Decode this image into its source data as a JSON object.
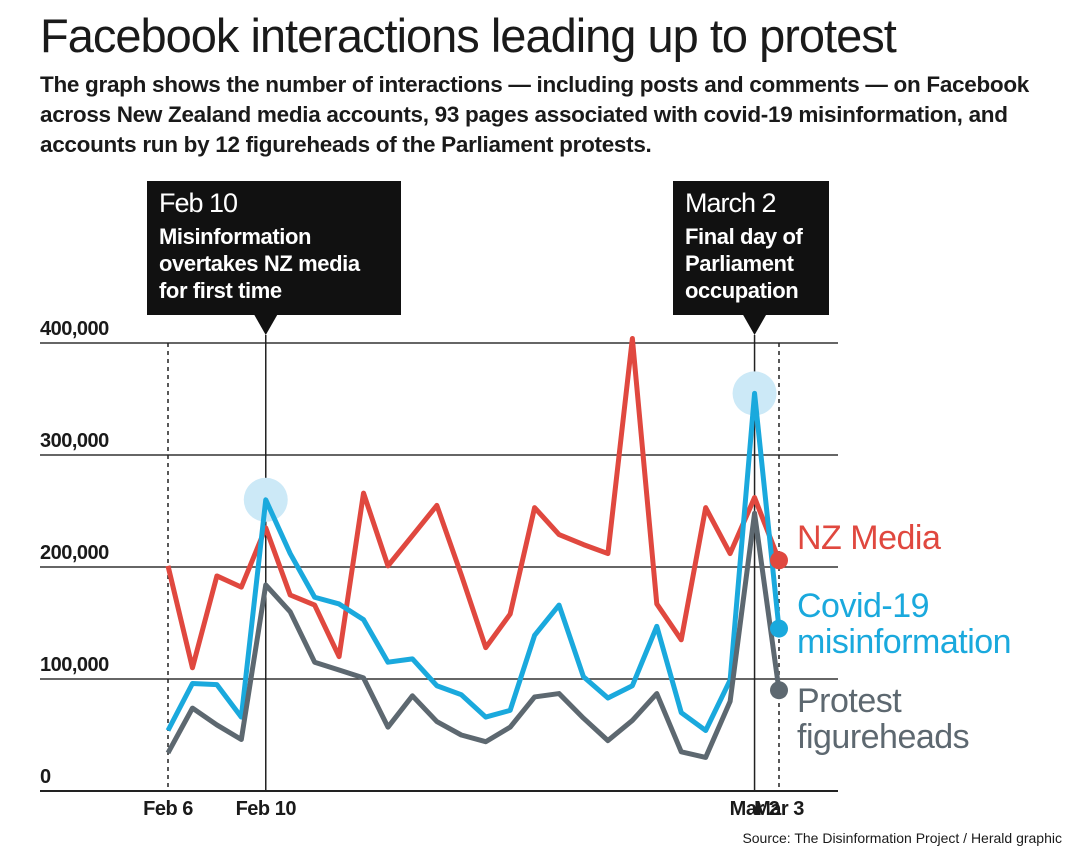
{
  "chart_data": {
    "type": "line",
    "title": "Facebook interactions leading up to protest",
    "subtitle": "The graph shows the number of interactions — including posts and comments — on Facebook across New Zealand media accounts, 93 pages associated with covid-19 misinformation, and accounts run by 12 figureheads of the Parliament protests.",
    "source": "Source: The Disinformation Project / Herald graphic",
    "categories": [
      "Feb 6",
      null,
      null,
      null,
      "Feb 10",
      null,
      null,
      null,
      null,
      null,
      null,
      null,
      null,
      null,
      null,
      null,
      null,
      null,
      null,
      null,
      null,
      null,
      null,
      null,
      "Mar 2",
      "Mar 3"
    ],
    "series": [
      {
        "name": "NZ Media",
        "color": "#e0483f",
        "values": [
          201000,
          110000,
          192000,
          182000,
          235000,
          175000,
          166000,
          120000,
          266000,
          201000,
          228000,
          255000,
          193000,
          128000,
          158000,
          253000,
          229000,
          220000,
          212000,
          404000,
          167000,
          135000,
          253000,
          212000,
          262000,
          206000
        ]
      },
      {
        "name": "Covid-19 misinformation",
        "color": "#1aa9dd",
        "values": [
          54000,
          96000,
          95000,
          66000,
          260000,
          212000,
          173000,
          167000,
          153000,
          115000,
          118000,
          94000,
          86000,
          66000,
          72000,
          139000,
          166000,
          102000,
          83000,
          94000,
          147000,
          70000,
          54000,
          99000,
          355000,
          145000
        ]
      },
      {
        "name": "Protest figureheads",
        "color": "#5d6870",
        "values": [
          34000,
          74000,
          59000,
          46000,
          184000,
          160000,
          115000,
          108000,
          101000,
          57000,
          85000,
          62000,
          50000,
          44000,
          57000,
          84000,
          87000,
          65000,
          45000,
          63000,
          87000,
          35000,
          30000,
          80000,
          248000,
          90000
        ]
      }
    ],
    "ylim": [
      0,
      400000
    ],
    "yticks": [
      0,
      {
        "value": 100000,
        "label": "100,000"
      },
      {
        "value": 200000,
        "label": "200,000"
      },
      {
        "value": 300000,
        "label": "300,000"
      },
      {
        "value": 400000,
        "label": "400,000"
      }
    ],
    "grid": true,
    "annotations": [
      {
        "label": "Feb 10",
        "lines": [
          "Misinformation",
          "overtakes NZ media",
          "for first time"
        ]
      },
      {
        "label": "March 2",
        "lines": [
          "Final day of",
          "Parliament",
          "occupation"
        ]
      }
    ]
  }
}
